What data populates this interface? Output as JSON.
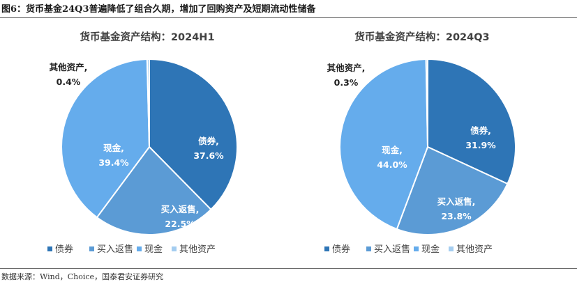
{
  "figure_title": "图6：货币基金24Q3普遍降低了组合久期，增加了回购资产及短期流动性储备",
  "source_note": "数据来源：Wind，Choice，国泰君安证券研究",
  "chart_data": [
    {
      "type": "pie",
      "title": "货币基金资产结构：2024H1",
      "categories": [
        "债券",
        "买入返售",
        "现金",
        "其他资产"
      ],
      "values": [
        37.6,
        22.5,
        39.4,
        0.4
      ],
      "value_labels": [
        "37.6%",
        "22.5%",
        "39.4%",
        "0.4%"
      ],
      "colors": [
        "#2e75b6",
        "#5b9bd5",
        "#65acec",
        "#a4cdf0"
      ],
      "legend_position": "bottom"
    },
    {
      "type": "pie",
      "title": "货币基金资产结构：2024Q3",
      "categories": [
        "债券",
        "买入返售",
        "现金",
        "其他资产"
      ],
      "values": [
        31.9,
        23.8,
        44.0,
        0.3
      ],
      "value_labels": [
        "31.9%",
        "23.8%",
        "44.0%",
        "0.3%"
      ],
      "colors": [
        "#2e75b6",
        "#5b9bd5",
        "#65acec",
        "#a4cdf0"
      ],
      "legend_position": "bottom"
    }
  ]
}
